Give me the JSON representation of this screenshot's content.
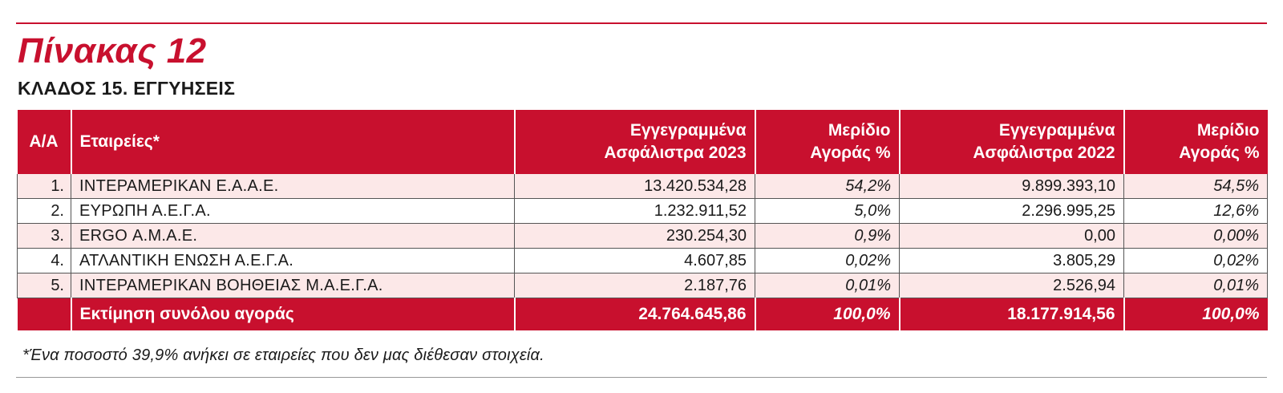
{
  "title": "Πίνακας 12",
  "subtitle": "ΚΛΑΔΟΣ 15. ΕΓΓΥΗΣΕΙΣ",
  "table": {
    "headers": {
      "aa": "Α/Α",
      "company": "Εταιρείες*",
      "premiums_2023_l1": "Εγγεγραμμένα",
      "premiums_2023_l2": "Ασφάλιστρα 2023",
      "share_2023_l1": "Μερίδιο",
      "share_2023_l2": "Αγοράς %",
      "premiums_2022_l1": "Εγγεγραμμένα",
      "premiums_2022_l2": "Ασφάλιστρα 2022",
      "share_2022_l1": "Μερίδιο",
      "share_2022_l2": "Αγοράς %"
    },
    "rows": [
      {
        "aa": "1.",
        "company": "ΙΝΤΕΡΑΜΕΡΙΚΑΝ Ε.Α.Α.Ε.",
        "premiums_2023": "13.420.534,28",
        "share_2023": "54,2%",
        "premiums_2022": "9.899.393,10",
        "share_2022": "54,5%"
      },
      {
        "aa": "2.",
        "company": "ΕΥΡΩΠΗ Α.Ε.Γ.Α.",
        "premiums_2023": "1.232.911,52",
        "share_2023": "5,0%",
        "premiums_2022": "2.296.995,25",
        "share_2022": "12,6%"
      },
      {
        "aa": "3.",
        "company": "ERGO Α.Μ.Α.Ε.",
        "premiums_2023": "230.254,30",
        "share_2023": "0,9%",
        "premiums_2022": "0,00",
        "share_2022": "0,00%"
      },
      {
        "aa": "4.",
        "company": "ΑΤΛΑΝΤΙΚΗ ΕΝΩΣΗ Α.Ε.Γ.Α.",
        "premiums_2023": "4.607,85",
        "share_2023": "0,02%",
        "premiums_2022": "3.805,29",
        "share_2022": "0,02%"
      },
      {
        "aa": "5.",
        "company": "ΙΝΤΕΡΑΜΕΡΙΚΑΝ ΒΟΗΘΕΙΑΣ Μ.Α.Ε.Γ.Α.",
        "premiums_2023": "2.187,76",
        "share_2023": "0,01%",
        "premiums_2022": "2.526,94",
        "share_2022": "0,01%"
      }
    ],
    "total": {
      "label": "Εκτίμηση συνόλου αγοράς",
      "premiums_2023": "24.764.645,86",
      "share_2023": "100,0%",
      "premiums_2022": "18.177.914,56",
      "share_2022": "100,0%"
    }
  },
  "footnote": "*Ένα ποσοστό 39,9% ανήκει σε εταιρείες που δεν μας διέθεσαν στοιχεία.",
  "colors": {
    "accent": "#c8102e",
    "row_tint": "#fce8e8"
  }
}
